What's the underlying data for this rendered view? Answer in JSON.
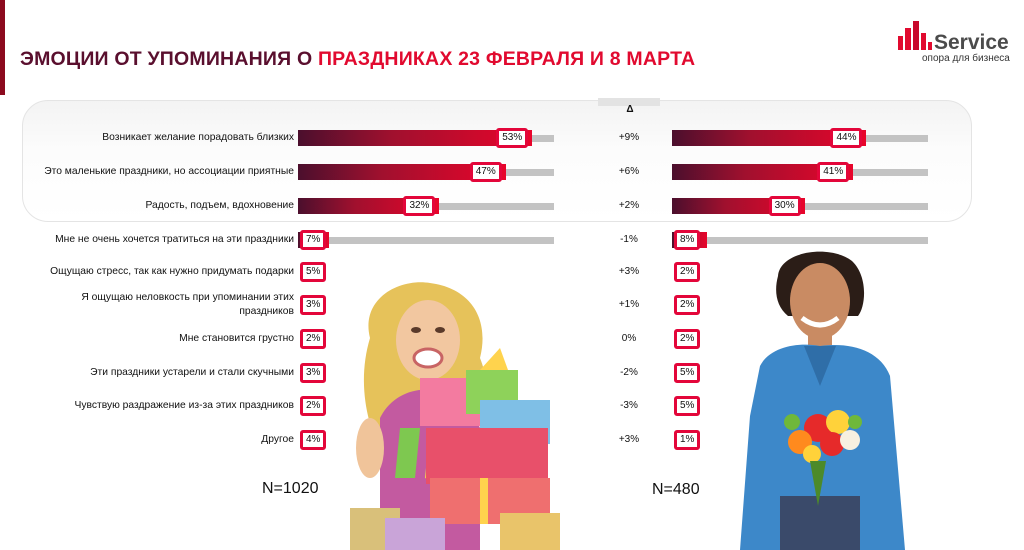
{
  "header": {
    "title_part1": "ЭМОЦИИ ОТ УПОМИНАНИЯ О ",
    "title_part2": "ПРАЗДНИКАХ 23 ФЕВРАЛЯ И 8 МАРТА",
    "logo_name": "Service",
    "logo_tagline": "опора для бизнеса"
  },
  "delta_header": "Δ",
  "colors": {
    "accent": "#e10a2f",
    "dark": "#5a0f2e",
    "bar_start": "#4b0f2d",
    "bar_end": "#e8052b",
    "track": "#c3c3c3",
    "label_border": "#e3063a"
  },
  "chart_data": {
    "type": "bar",
    "orientation": "horizontal",
    "categories": [
      "Возникает желание порадовать близких",
      "Это маленькие праздники, но ассоциации приятные",
      "Радость, подъем, вдохновение",
      "Мне не очень хочется тратиться на эти праздники",
      "Ощущаю стресс, так как нужно придумать подарки",
      "Я ощущаю неловкость при упоминании этих праздников",
      "Мне становится грустно",
      "Эти праздники устарели и стали скучными",
      "Чувствую раздражение из-за этих праздников",
      "Другое"
    ],
    "series": [
      {
        "values": [
          53,
          47,
          32,
          7,
          5,
          3,
          2,
          3,
          2,
          4
        ],
        "labels": [
          "53%",
          "47%",
          "32%",
          "7%",
          "5%",
          "3%",
          "2%",
          "3%",
          "2%",
          "4%"
        ]
      },
      {
        "values": [
          44,
          41,
          30,
          8,
          2,
          2,
          2,
          5,
          5,
          1
        ],
        "labels": [
          "44%",
          "41%",
          "30%",
          "8%",
          "2%",
          "2%",
          "2%",
          "5%",
          "5%",
          "1%"
        ]
      }
    ],
    "delta": [
      "+9%",
      "+6%",
      "+2%",
      "-1%",
      "+3%",
      "+1%",
      "0%",
      "-2%",
      "-3%",
      "+3%"
    ],
    "sample_left": "N=1020",
    "sample_right": "N=480",
    "xlim": [
      0,
      100
    ]
  }
}
